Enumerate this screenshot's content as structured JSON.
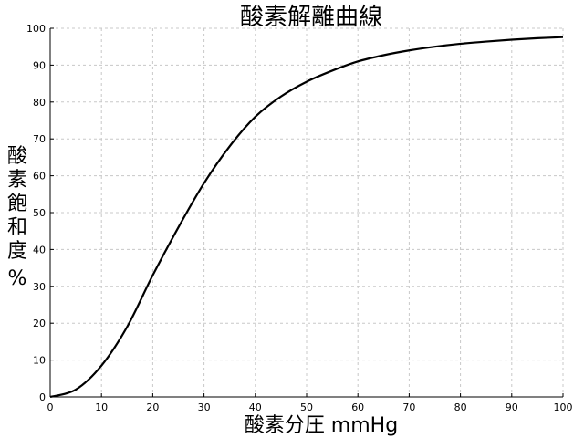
{
  "chart_data": {
    "type": "line",
    "title": "酸素解離曲線",
    "xlabel": "酸素分圧 mmHg",
    "ylabel": [
      "酸",
      "素",
      "飽",
      "和",
      "度",
      "%"
    ],
    "xlim": [
      0,
      100
    ],
    "ylim": [
      0,
      100
    ],
    "xticks": [
      "0",
      "10",
      "20",
      "30",
      "40",
      "50",
      "60",
      "70",
      "80",
      "90",
      "100"
    ],
    "yticks": [
      "0",
      "10",
      "20",
      "30",
      "40",
      "50",
      "60",
      "70",
      "80",
      "90",
      "100"
    ],
    "grid": true,
    "series": [
      {
        "color": "#000000",
        "x": [
          0,
          5,
          10,
          15,
          20,
          25,
          30,
          35,
          40,
          45,
          50,
          55,
          60,
          65,
          70,
          75,
          80,
          85,
          90,
          95,
          100
        ],
        "y": [
          0,
          2,
          8.5,
          19,
          33,
          46,
          58,
          68,
          76,
          81.5,
          85.5,
          88.5,
          91,
          92.7,
          94,
          95,
          95.8,
          96.4,
          96.9,
          97.3,
          97.6
        ]
      }
    ]
  }
}
